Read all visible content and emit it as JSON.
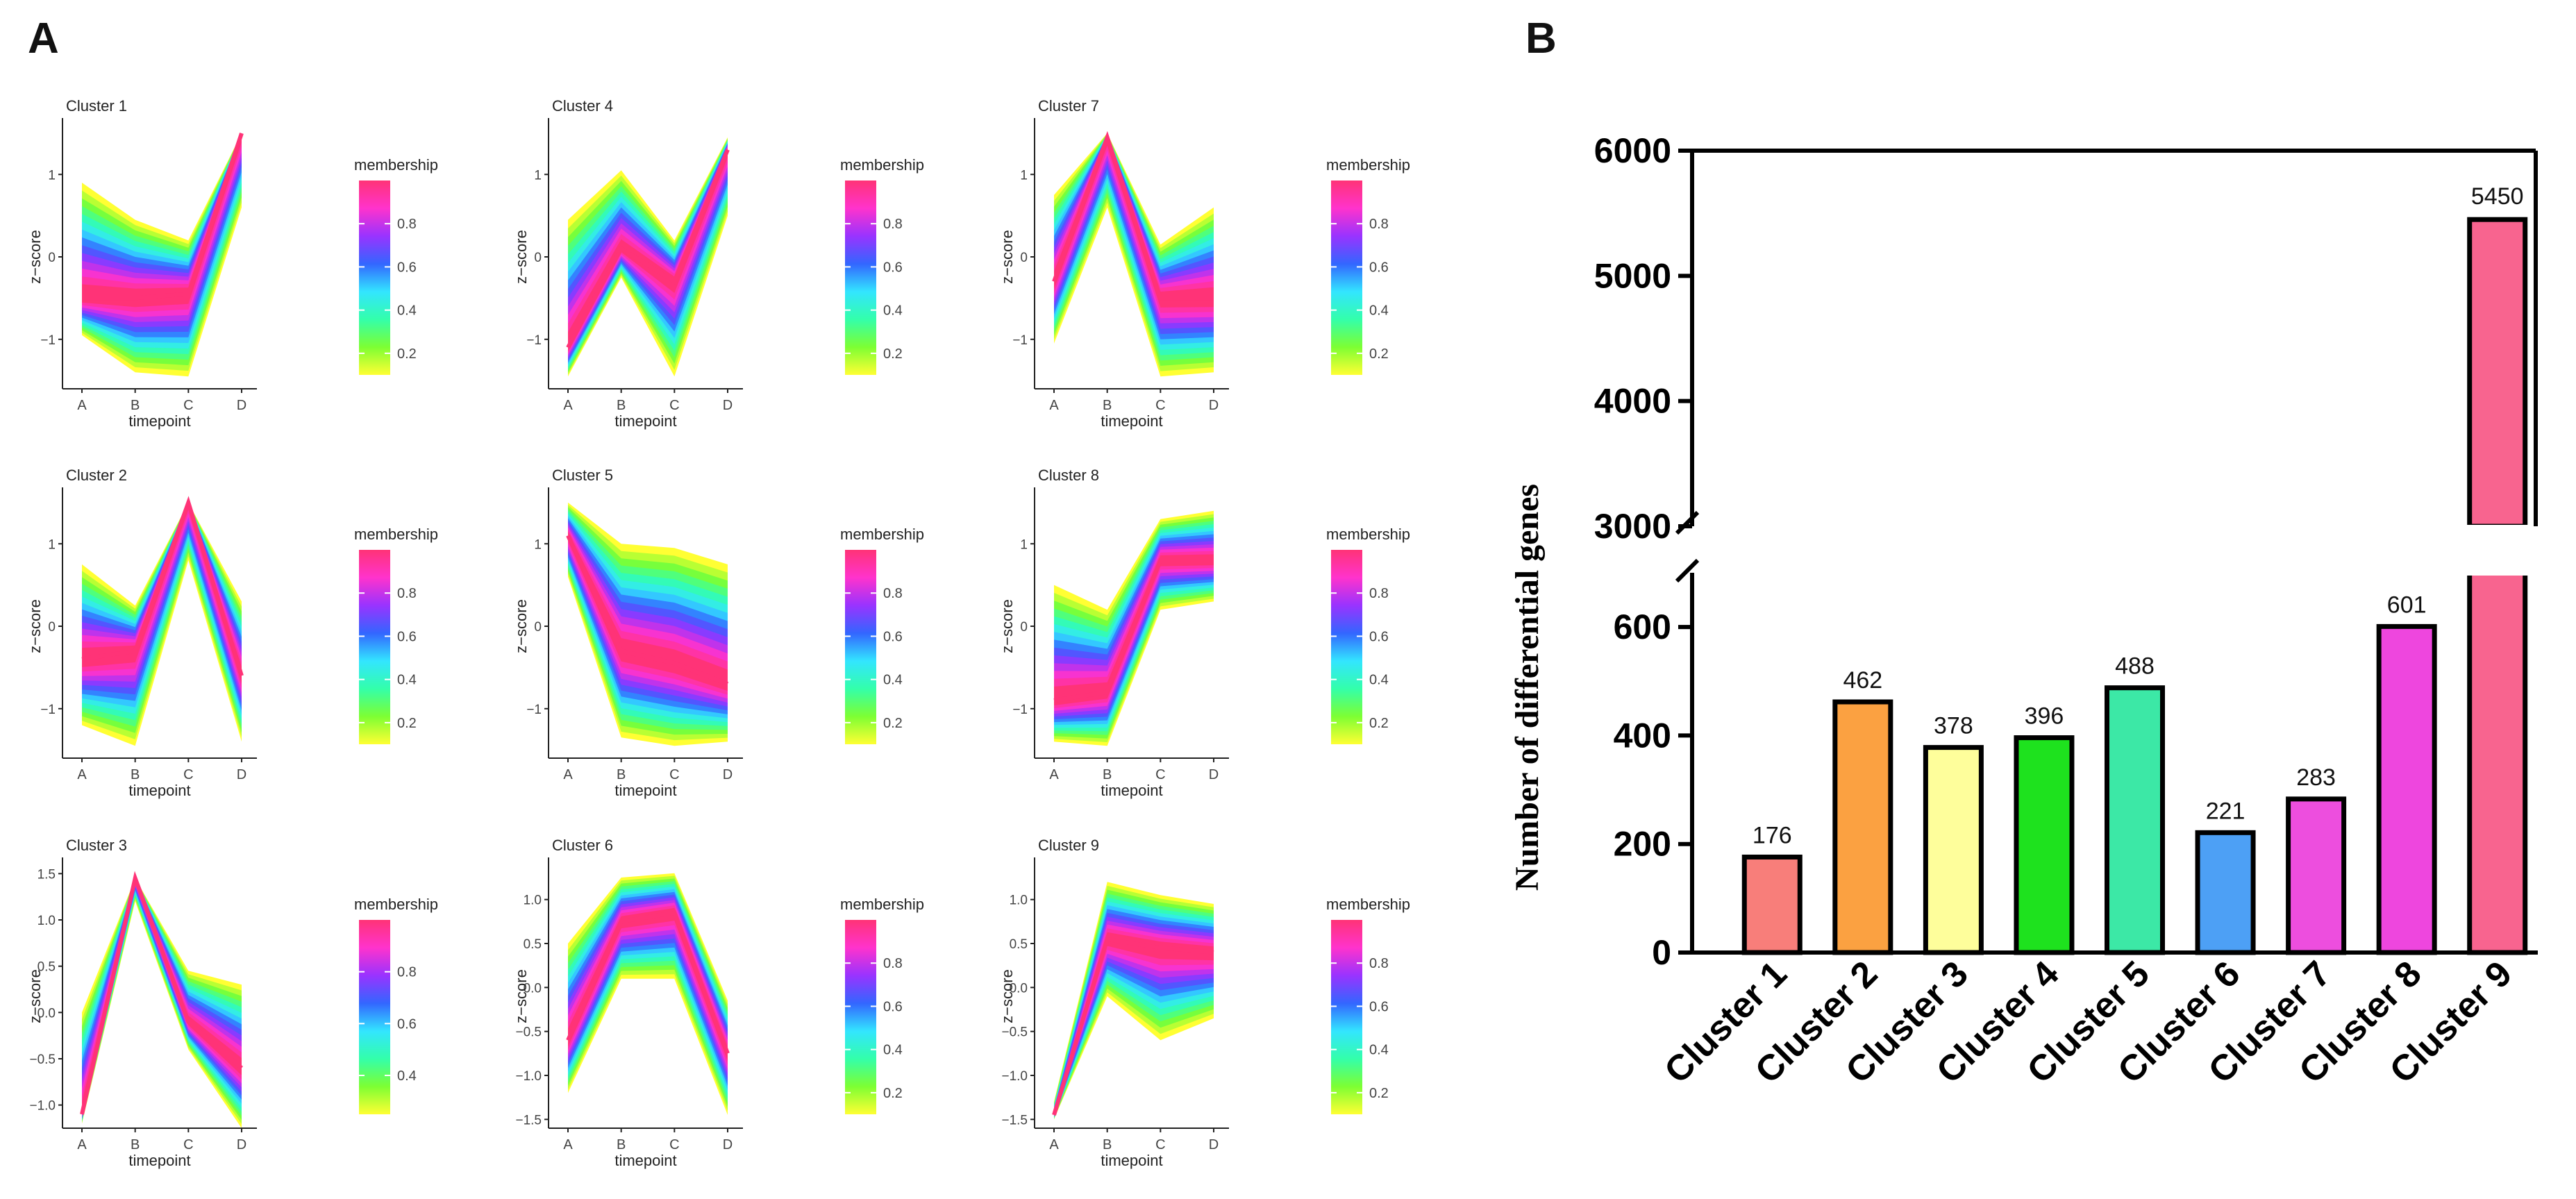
{
  "panel_labels": {
    "a": "A",
    "b": "B"
  },
  "colorbar_title": "membership",
  "colors": {
    "gradient": [
      "#ffff33",
      "#7dff33",
      "#33ffaa",
      "#33e5ff",
      "#3366ff",
      "#9933ff",
      "#ff33cc",
      "#ff3377"
    ]
  },
  "chart_data": [
    {
      "type": "line",
      "title": "Cluster 1",
      "xlabel": "timepoint",
      "ylabel": "z−score",
      "categories": [
        "A",
        "B",
        "C",
        "D"
      ],
      "center": [
        -0.5,
        -0.5,
        -0.45,
        1.5
      ],
      "upper": [
        0.9,
        0.45,
        0.2,
        1.5
      ],
      "lower": [
        -0.95,
        -1.4,
        -1.45,
        0.6
      ],
      "ylim": [
        -1.6,
        1.6
      ],
      "yticks": [
        -1,
        0,
        1
      ],
      "yticklabels": [
        "−1",
        "0",
        "1"
      ],
      "colorbar": {
        "range": [
          0.1,
          1.0
        ],
        "ticks": [
          0.2,
          0.4,
          0.6,
          0.8
        ],
        "ticklabels": [
          "0.2",
          "0.4",
          "0.6",
          "0.8"
        ]
      }
    },
    {
      "type": "line",
      "title": "Cluster 2",
      "xlabel": "timepoint",
      "ylabel": "z−score",
      "categories": [
        "A",
        "B",
        "C",
        "D"
      ],
      "center": [
        -0.4,
        -0.3,
        1.5,
        -0.6
      ],
      "upper": [
        0.75,
        0.25,
        1.5,
        0.3
      ],
      "lower": [
        -1.2,
        -1.45,
        0.8,
        -1.4
      ],
      "ylim": [
        -1.6,
        1.6
      ],
      "yticks": [
        -1,
        0,
        1
      ],
      "yticklabels": [
        "−1",
        "0",
        "1"
      ],
      "colorbar": {
        "range": [
          0.1,
          1.0
        ],
        "ticks": [
          0.2,
          0.4,
          0.6,
          0.8
        ],
        "ticklabels": [
          "0.2",
          "0.4",
          "0.6",
          "0.8"
        ]
      }
    },
    {
      "type": "line",
      "title": "Cluster 3",
      "xlabel": "timepoint",
      "ylabel": "z−score",
      "categories": [
        "A",
        "B",
        "C",
        "D"
      ],
      "center": [
        -1.1,
        1.45,
        -0.1,
        -0.6
      ],
      "upper": [
        0.0,
        1.45,
        0.45,
        0.3
      ],
      "lower": [
        -1.2,
        1.2,
        -0.4,
        -1.25
      ],
      "ylim": [
        -1.25,
        1.6
      ],
      "yticks": [
        -1.0,
        -0.5,
        0.0,
        0.5,
        1.0,
        1.5
      ],
      "yticklabels": [
        "−1.0",
        "−0.5",
        "0.0",
        "0.5",
        "1.0",
        "1.5"
      ],
      "colorbar": {
        "range": [
          0.25,
          1.0
        ],
        "ticks": [
          0.4,
          0.6,
          0.8
        ],
        "ticklabels": [
          "0.4",
          "0.6",
          "0.8"
        ]
      }
    },
    {
      "type": "line",
      "title": "Cluster 4",
      "xlabel": "timepoint",
      "ylabel": "z−score",
      "categories": [
        "A",
        "B",
        "C",
        "D"
      ],
      "center": [
        -1.1,
        0.1,
        -0.3,
        1.3
      ],
      "upper": [
        0.45,
        1.05,
        0.2,
        1.45
      ],
      "lower": [
        -1.45,
        -0.25,
        -1.45,
        0.5
      ],
      "ylim": [
        -1.6,
        1.6
      ],
      "yticks": [
        -1,
        0,
        1
      ],
      "yticklabels": [
        "−1",
        "0",
        "1"
      ],
      "colorbar": {
        "range": [
          0.1,
          1.0
        ],
        "ticks": [
          0.2,
          0.4,
          0.6,
          0.8
        ],
        "ticklabels": [
          "0.2",
          "0.4",
          "0.6",
          "0.8"
        ]
      }
    },
    {
      "type": "line",
      "title": "Cluster 5",
      "xlabel": "timepoint",
      "ylabel": "z−score",
      "categories": [
        "A",
        "B",
        "C",
        "D"
      ],
      "center": [
        1.1,
        -0.3,
        -0.45,
        -0.7
      ],
      "upper": [
        1.5,
        1.0,
        0.95,
        0.75
      ],
      "lower": [
        0.6,
        -1.35,
        -1.45,
        -1.4
      ],
      "ylim": [
        -1.6,
        1.6
      ],
      "yticks": [
        -1,
        0,
        1
      ],
      "yticklabels": [
        "−1",
        "0",
        "1"
      ],
      "colorbar": {
        "range": [
          0.1,
          1.0
        ],
        "ticks": [
          0.2,
          0.4,
          0.6,
          0.8
        ],
        "ticklabels": [
          "0.2",
          "0.4",
          "0.6",
          "0.8"
        ]
      }
    },
    {
      "type": "line",
      "title": "Cluster 6",
      "xlabel": "timepoint",
      "ylabel": "z−score",
      "categories": [
        "A",
        "B",
        "C",
        "D"
      ],
      "center": [
        -0.6,
        0.75,
        0.85,
        -0.75
      ],
      "upper": [
        0.5,
        1.25,
        1.3,
        -0.15
      ],
      "lower": [
        -1.2,
        0.1,
        0.1,
        -1.45
      ],
      "ylim": [
        -1.6,
        1.4
      ],
      "yticks": [
        -1.5,
        -1.0,
        -0.5,
        0.0,
        0.5,
        1.0
      ],
      "yticklabels": [
        "−1.5",
        "−1.0",
        "−0.5",
        "0.0",
        "0.5",
        "1.0"
      ],
      "colorbar": {
        "range": [
          0.1,
          1.0
        ],
        "ticks": [
          0.2,
          0.4,
          0.6,
          0.8
        ],
        "ticklabels": [
          "0.2",
          "0.4",
          "0.6",
          "0.8"
        ]
      }
    },
    {
      "type": "line",
      "title": "Cluster 7",
      "xlabel": "timepoint",
      "ylabel": "z−score",
      "categories": [
        "A",
        "B",
        "C",
        "D"
      ],
      "center": [
        -0.3,
        1.45,
        -0.5,
        -0.5
      ],
      "upper": [
        0.75,
        1.5,
        0.15,
        0.6
      ],
      "lower": [
        -1.05,
        0.6,
        -1.45,
        -1.4
      ],
      "ylim": [
        -1.6,
        1.6
      ],
      "yticks": [
        -1,
        0,
        1
      ],
      "yticklabels": [
        "−1",
        "0",
        "1"
      ],
      "colorbar": {
        "range": [
          0.1,
          1.0
        ],
        "ticks": [
          0.2,
          0.4,
          0.6,
          0.8
        ],
        "ticklabels": [
          "0.2",
          "0.4",
          "0.6",
          "0.8"
        ]
      }
    },
    {
      "type": "line",
      "title": "Cluster 8",
      "xlabel": "timepoint",
      "ylabel": "z−score",
      "categories": [
        "A",
        "B",
        "C",
        "D"
      ],
      "center": [
        -0.9,
        -0.8,
        0.8,
        0.8
      ],
      "upper": [
        0.5,
        0.2,
        1.3,
        1.4
      ],
      "lower": [
        -1.4,
        -1.45,
        0.2,
        0.3
      ],
      "ylim": [
        -1.6,
        1.6
      ],
      "yticks": [
        -1,
        0,
        1
      ],
      "yticklabels": [
        "−1",
        "0",
        "1"
      ],
      "colorbar": {
        "range": [
          0.1,
          1.0
        ],
        "ticks": [
          0.2,
          0.4,
          0.6,
          0.8
        ],
        "ticklabels": [
          "0.2",
          "0.4",
          "0.6",
          "0.8"
        ]
      }
    },
    {
      "type": "line",
      "title": "Cluster 9",
      "xlabel": "timepoint",
      "ylabel": "z−score",
      "categories": [
        "A",
        "B",
        "C",
        "D"
      ],
      "center": [
        -1.45,
        0.55,
        0.45,
        0.4
      ],
      "upper": [
        -1.3,
        1.2,
        1.05,
        0.95
      ],
      "lower": [
        -1.5,
        -0.1,
        -0.6,
        -0.35
      ],
      "ylim": [
        -1.6,
        1.4
      ],
      "yticks": [
        -1.5,
        -1.0,
        -0.5,
        0.0,
        0.5,
        1.0
      ],
      "yticklabels": [
        "−1.5",
        "−1.0",
        "−0.5",
        "0.0",
        "0.5",
        "1.0"
      ],
      "colorbar": {
        "range": [
          0.1,
          1.0
        ],
        "ticks": [
          0.2,
          0.4,
          0.6,
          0.8
        ],
        "ticklabels": [
          "0.2",
          "0.4",
          "0.6",
          "0.8"
        ]
      }
    },
    {
      "type": "bar",
      "title": "",
      "xlabel": "",
      "ylabel": "Number of differential genes",
      "categories": [
        "Cluster 1",
        "Cluster 2",
        "Cluster 3",
        "Cluster 4",
        "Cluster 5",
        "Cluster 6",
        "Cluster 7",
        "Cluster 8",
        "Cluster 9"
      ],
      "values": [
        176,
        462,
        378,
        396,
        488,
        221,
        283,
        601,
        5450
      ],
      "bar_colors": [
        "#f87e7a",
        "#fba141",
        "#fefe9b",
        "#1ee21e",
        "#3ce8a6",
        "#4da0f5",
        "#ed4ede",
        "#ee46de",
        "#f8648f"
      ],
      "axis_break": {
        "lower_range": [
          0,
          700
        ],
        "upper_range": [
          3000,
          6000
        ]
      },
      "yticks_lower": [
        0,
        200,
        400,
        600
      ],
      "yticks_upper": [
        3000,
        4000,
        5000,
        6000
      ]
    }
  ]
}
